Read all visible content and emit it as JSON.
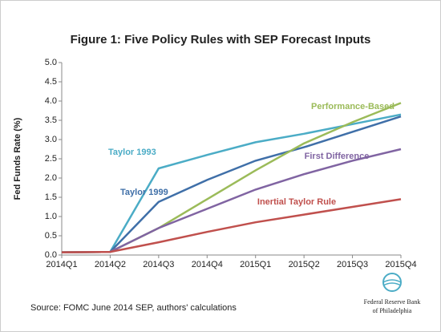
{
  "chart_data": {
    "type": "line",
    "title": "Figure 1: Five Policy Rules with SEP Forecast Inputs",
    "y_label": "Fed Funds Rate (%)",
    "categories": [
      "2014Q1",
      "2014Q2",
      "2014Q3",
      "2014Q4",
      "2015Q1",
      "2015Q2",
      "2015Q3",
      "2015Q4"
    ],
    "series": [
      {
        "name": "Taylor 1993",
        "color": "#4bacc6",
        "values": [
          0.07,
          0.08,
          2.25,
          2.6,
          2.93,
          3.15,
          3.4,
          3.65
        ]
      },
      {
        "name": "Taylor 1999",
        "color": "#3f6fa8",
        "values": [
          0.07,
          0.08,
          1.38,
          1.95,
          2.45,
          2.8,
          3.2,
          3.6
        ]
      },
      {
        "name": "Performance-Based",
        "color": "#9bbb59",
        "values": [
          0.07,
          0.08,
          0.7,
          1.45,
          2.2,
          2.9,
          3.45,
          3.95
        ]
      },
      {
        "name": "First Difference",
        "color": "#8064a2",
        "values": [
          0.07,
          0.08,
          0.7,
          1.2,
          1.7,
          2.1,
          2.45,
          2.75
        ]
      },
      {
        "name": "Inertial Taylor Rule",
        "color": "#c0504d",
        "values": [
          0.07,
          0.08,
          0.33,
          0.6,
          0.85,
          1.05,
          1.25,
          1.45
        ]
      }
    ],
    "ylim": [
      0,
      5
    ],
    "yticks": [
      {
        "value": 0,
        "label": "0.0"
      },
      0.5,
      {
        "value": 1,
        "label": "1.0"
      },
      1.5,
      {
        "value": 2,
        "label": "2.0"
      },
      2.5,
      {
        "value": 3,
        "label": "3.0"
      },
      3.5,
      {
        "value": 4,
        "label": "4.0"
      },
      4.5,
      {
        "value": 5,
        "label": "5.0"
      }
    ],
    "grid": false,
    "source": "Source:  FOMC June 2014 SEP, authors' calculations",
    "logo_text": [
      "Federal Reserve Bank",
      "of Philadelphia"
    ]
  }
}
